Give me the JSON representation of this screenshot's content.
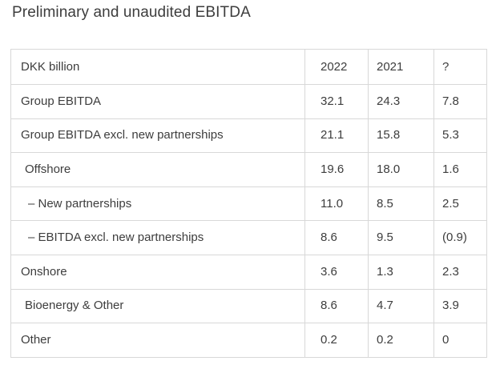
{
  "page": {
    "title": "Preliminary and unaudited EBITDA"
  },
  "table": {
    "columns": [
      "DKK billion",
      "2022",
      "2021",
      "?"
    ],
    "rows": [
      {
        "label": "Group EBITDA",
        "indent": 0,
        "values": [
          "32.1",
          "24.3",
          "7.8"
        ]
      },
      {
        "label": "Group EBITDA excl. new partnerships",
        "indent": 0,
        "values": [
          "21.1",
          "15.8",
          "5.3"
        ]
      },
      {
        "label": "Offshore",
        "indent": 1,
        "values": [
          "19.6",
          "18.0",
          "1.6"
        ]
      },
      {
        "label": "– New partnerships",
        "indent": 2,
        "values": [
          "11.0",
          "8.5",
          "2.5"
        ]
      },
      {
        "label": "– EBITDA excl. new partnerships",
        "indent": 2,
        "values": [
          "8.6",
          "9.5",
          "(0.9)"
        ]
      },
      {
        "label": "Onshore",
        "indent": 0,
        "values": [
          "3.6",
          "1.3",
          "2.3"
        ]
      },
      {
        "label": "Bioenergy & Other",
        "indent": 1,
        "values": [
          "8.6",
          "4.7",
          "3.9"
        ]
      },
      {
        "label": "Other",
        "indent": 0,
        "values": [
          "0.2",
          "0.2",
          "0"
        ]
      }
    ]
  },
  "colors": {
    "text": "#3d3d3d",
    "border": "#d8d8d8",
    "background": "#ffffff"
  }
}
